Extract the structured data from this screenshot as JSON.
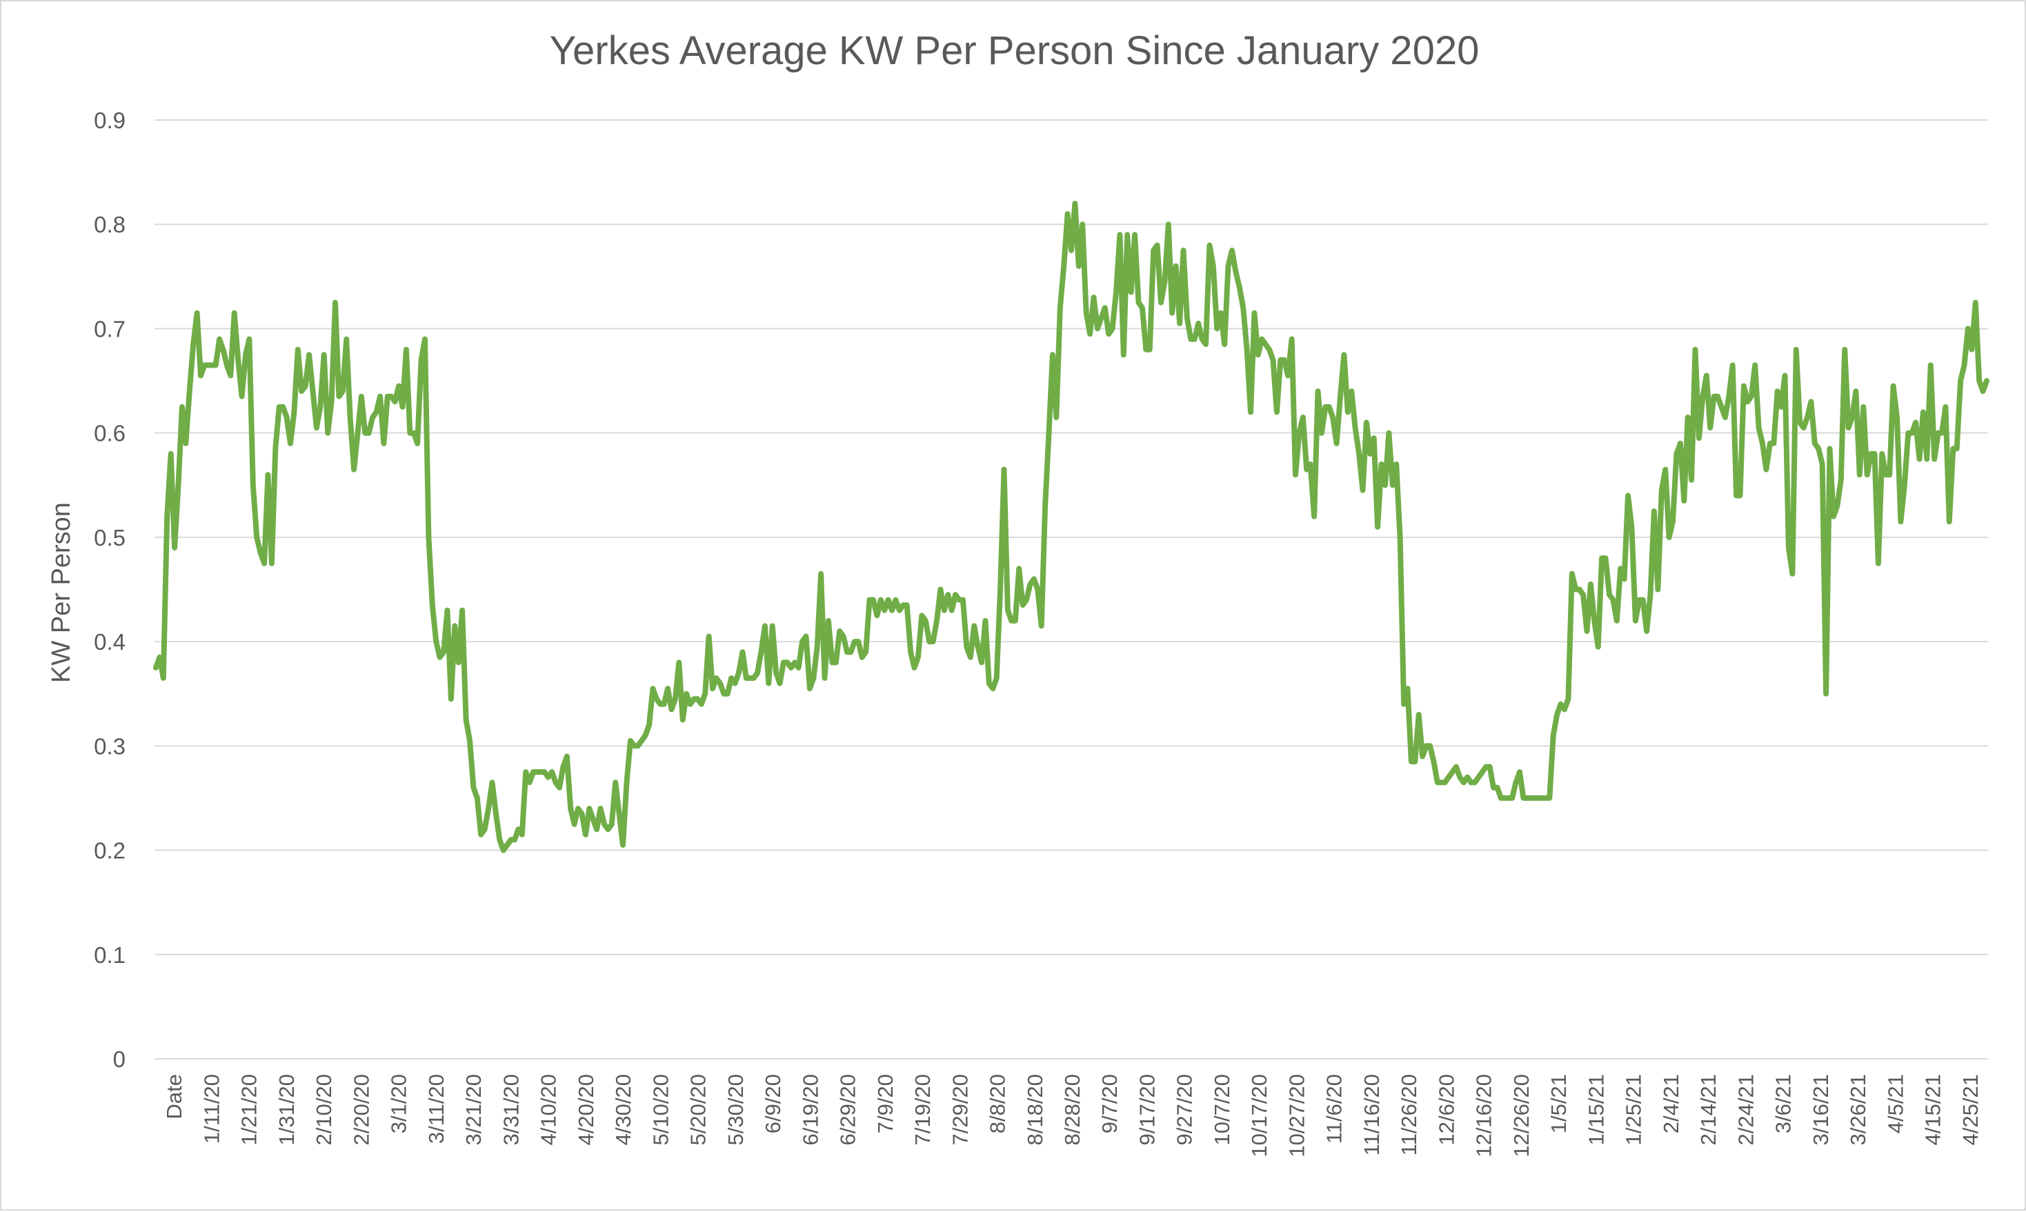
{
  "chart_data": {
    "type": "line",
    "title": "Yerkes Average KW Per Person Since January 2020",
    "xlabel": "",
    "ylabel": "KW Per Person",
    "ylim": [
      0,
      0.9
    ],
    "y_ticks": [
      "0",
      "0.1",
      "0.2",
      "0.3",
      "0.4",
      "0.5",
      "0.6",
      "0.7",
      "0.8",
      "0.9"
    ],
    "x_labels": [
      "Date",
      "1/11/20",
      "1/21/20",
      "1/31/20",
      "2/10/20",
      "2/20/20",
      "3/1/20",
      "3/11/20",
      "3/21/20",
      "3/31/20",
      "4/10/20",
      "4/20/20",
      "4/30/20",
      "5/10/20",
      "5/20/20",
      "5/30/20",
      "6/9/20",
      "6/19/20",
      "6/29/20",
      "7/9/20",
      "7/19/20",
      "7/29/20",
      "8/8/20",
      "8/18/20",
      "8/28/20",
      "9/7/20",
      "9/17/20",
      "9/27/20",
      "10/7/20",
      "10/17/20",
      "10/27/20",
      "11/6/20",
      "11/16/20",
      "11/26/20",
      "12/6/20",
      "12/16/20",
      "12/26/20",
      "1/5/21",
      "1/15/21",
      "1/25/21",
      "2/4/21",
      "2/14/21",
      "2/24/21",
      "3/6/21",
      "3/16/21",
      "3/26/21",
      "4/5/21",
      "4/15/21",
      "4/25/21"
    ],
    "grid": true,
    "legend": "none",
    "series_color": "#70ad47",
    "series": [
      {
        "values": [
          0.375,
          0.385,
          0.365,
          0.52,
          0.58,
          0.49,
          0.55,
          0.625,
          0.59,
          0.64,
          0.685,
          0.715,
          0.655,
          0.665,
          0.665,
          0.665,
          0.665,
          0.69,
          0.68,
          0.665,
          0.655,
          0.715,
          0.67,
          0.635,
          0.675,
          0.69,
          0.55,
          0.5,
          0.485,
          0.475,
          0.56,
          0.475,
          0.585,
          0.625,
          0.625,
          0.615,
          0.59,
          0.62,
          0.68,
          0.64,
          0.645,
          0.675,
          0.64,
          0.605,
          0.625,
          0.675,
          0.6,
          0.63,
          0.725,
          0.635,
          0.64,
          0.69,
          0.615,
          0.565,
          0.6,
          0.635,
          0.6,
          0.6,
          0.615,
          0.62,
          0.635,
          0.59,
          0.635,
          0.635,
          0.63,
          0.645,
          0.625,
          0.68,
          0.6,
          0.6,
          0.59,
          0.67,
          0.69,
          0.5,
          0.435,
          0.4,
          0.385,
          0.39,
          0.43,
          0.345,
          0.415,
          0.38,
          0.43,
          0.325,
          0.305,
          0.26,
          0.25,
          0.215,
          0.22,
          0.24,
          0.265,
          0.235,
          0.21,
          0.2,
          0.205,
          0.21,
          0.21,
          0.22,
          0.215,
          0.275,
          0.265,
          0.275,
          0.275,
          0.275,
          0.275,
          0.27,
          0.275,
          0.265,
          0.26,
          0.28,
          0.29,
          0.24,
          0.225,
          0.24,
          0.235,
          0.215,
          0.24,
          0.23,
          0.22,
          0.24,
          0.225,
          0.22,
          0.225,
          0.265,
          0.235,
          0.205,
          0.265,
          0.305,
          0.3,
          0.3,
          0.305,
          0.31,
          0.32,
          0.355,
          0.345,
          0.34,
          0.34,
          0.355,
          0.335,
          0.345,
          0.38,
          0.325,
          0.35,
          0.34,
          0.345,
          0.345,
          0.34,
          0.35,
          0.405,
          0.355,
          0.365,
          0.36,
          0.35,
          0.35,
          0.365,
          0.36,
          0.37,
          0.39,
          0.365,
          0.365,
          0.365,
          0.37,
          0.39,
          0.415,
          0.36,
          0.415,
          0.37,
          0.36,
          0.38,
          0.38,
          0.375,
          0.38,
          0.375,
          0.4,
          0.405,
          0.355,
          0.365,
          0.395,
          0.465,
          0.365,
          0.42,
          0.38,
          0.38,
          0.41,
          0.405,
          0.39,
          0.39,
          0.4,
          0.4,
          0.385,
          0.39,
          0.44,
          0.44,
          0.425,
          0.44,
          0.43,
          0.44,
          0.43,
          0.44,
          0.43,
          0.435,
          0.435,
          0.39,
          0.375,
          0.385,
          0.425,
          0.42,
          0.4,
          0.4,
          0.42,
          0.45,
          0.43,
          0.445,
          0.43,
          0.445,
          0.44,
          0.44,
          0.395,
          0.385,
          0.415,
          0.395,
          0.38,
          0.42,
          0.36,
          0.355,
          0.365,
          0.45,
          0.565,
          0.43,
          0.42,
          0.42,
          0.47,
          0.435,
          0.44,
          0.455,
          0.46,
          0.45,
          0.415,
          0.53,
          0.6,
          0.675,
          0.615,
          0.72,
          0.76,
          0.81,
          0.775,
          0.82,
          0.76,
          0.8,
          0.715,
          0.695,
          0.73,
          0.7,
          0.71,
          0.72,
          0.695,
          0.7,
          0.735,
          0.79,
          0.675,
          0.79,
          0.735,
          0.79,
          0.725,
          0.72,
          0.68,
          0.68,
          0.775,
          0.78,
          0.725,
          0.745,
          0.8,
          0.715,
          0.76,
          0.705,
          0.775,
          0.71,
          0.69,
          0.69,
          0.705,
          0.69,
          0.685,
          0.78,
          0.76,
          0.7,
          0.715,
          0.685,
          0.76,
          0.775,
          0.755,
          0.74,
          0.72,
          0.68,
          0.62,
          0.715,
          0.675,
          0.69,
          0.685,
          0.68,
          0.67,
          0.62,
          0.67,
          0.67,
          0.655,
          0.69,
          0.56,
          0.6,
          0.615,
          0.565,
          0.57,
          0.52,
          0.64,
          0.6,
          0.625,
          0.625,
          0.615,
          0.59,
          0.635,
          0.675,
          0.62,
          0.64,
          0.605,
          0.58,
          0.545,
          0.61,
          0.58,
          0.595,
          0.51,
          0.57,
          0.55,
          0.6,
          0.55,
          0.57,
          0.5,
          0.34,
          0.355,
          0.285,
          0.285,
          0.33,
          0.29,
          0.3,
          0.3,
          0.285,
          0.265,
          0.265,
          0.265,
          0.27,
          0.275,
          0.28,
          0.27,
          0.265,
          0.27,
          0.265,
          0.265,
          0.27,
          0.275,
          0.28,
          0.28,
          0.26,
          0.26,
          0.25,
          0.25,
          0.25,
          0.25,
          0.265,
          0.275,
          0.25,
          0.25,
          0.25,
          0.25,
          0.25,
          0.25,
          0.25,
          0.25,
          0.31,
          0.33,
          0.34,
          0.335,
          0.345,
          0.465,
          0.45,
          0.45,
          0.445,
          0.41,
          0.455,
          0.42,
          0.395,
          0.48,
          0.48,
          0.445,
          0.44,
          0.42,
          0.47,
          0.46,
          0.54,
          0.51,
          0.42,
          0.44,
          0.44,
          0.41,
          0.445,
          0.525,
          0.45,
          0.545,
          0.565,
          0.5,
          0.515,
          0.58,
          0.59,
          0.535,
          0.615,
          0.555,
          0.68,
          0.595,
          0.635,
          0.655,
          0.605,
          0.635,
          0.635,
          0.625,
          0.615,
          0.635,
          0.665,
          0.54,
          0.54,
          0.645,
          0.63,
          0.635,
          0.665,
          0.605,
          0.59,
          0.565,
          0.59,
          0.59,
          0.64,
          0.625,
          0.655,
          0.49,
          0.465,
          0.68,
          0.61,
          0.605,
          0.615,
          0.63,
          0.59,
          0.585,
          0.57,
          0.35,
          0.585,
          0.52,
          0.53,
          0.555,
          0.68,
          0.605,
          0.615,
          0.64,
          0.56,
          0.625,
          0.56,
          0.58,
          0.58,
          0.475,
          0.58,
          0.56,
          0.56,
          0.645,
          0.615,
          0.515,
          0.55,
          0.6,
          0.6,
          0.61,
          0.575,
          0.62,
          0.575,
          0.665,
          0.575,
          0.6,
          0.6,
          0.625,
          0.515,
          0.585,
          0.585,
          0.65,
          0.665,
          0.7,
          0.68,
          0.725,
          0.65,
          0.64,
          0.65
        ]
      }
    ]
  }
}
